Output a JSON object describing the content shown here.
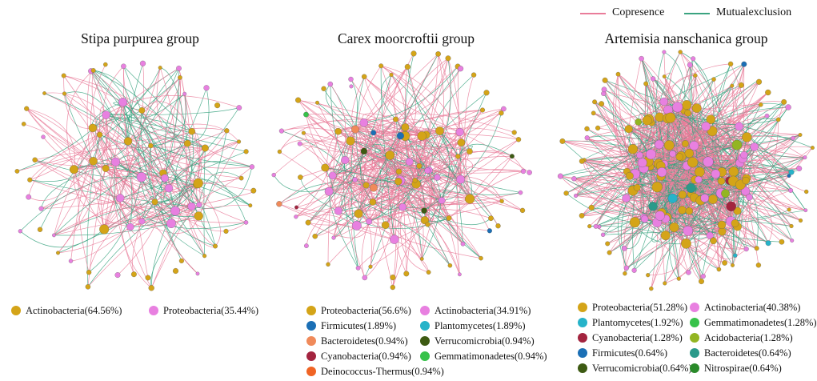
{
  "edge_legend": {
    "items": [
      {
        "label": "Copresence",
        "color": "#e97c9a"
      },
      {
        "label": "Mutualexclusion",
        "color": "#3aa380"
      }
    ]
  },
  "groups": [
    {
      "title": "Stipa purpurea group",
      "legend": [
        {
          "label": "Actinobacteria(64.56%)",
          "color": "#d4a418"
        },
        {
          "label": "Proteobacteria(35.44%)",
          "color": "#e880e0"
        }
      ]
    },
    {
      "title": "Carex moorcroftii group",
      "legend": [
        {
          "label": "Proteobacteria(56.6%)",
          "color": "#d4a418"
        },
        {
          "label": "Actinobacteria(34.91%)",
          "color": "#e880e0"
        },
        {
          "label": "Firmicutes(1.89%)",
          "color": "#1b6fb5"
        },
        {
          "label": "Plantomycetes(1.89%)",
          "color": "#26b3c9"
        },
        {
          "label": "Bacteroidetes(0.94%)",
          "color": "#f08a5a"
        },
        {
          "label": "Verrucomicrobia(0.94%)",
          "color": "#3d5a12"
        },
        {
          "label": "Cyanobacteria(0.94%)",
          "color": "#a3243f"
        },
        {
          "label": "Gemmatimonadetes(0.94%)",
          "color": "#37c24a"
        },
        {
          "label": "Deinococcus-Thermus(0.94%)",
          "color": "#f06424"
        }
      ]
    },
    {
      "title": "Artemisia nanschanica group",
      "legend": [
        {
          "label": "Proteobacteria(51.28%)",
          "color": "#d4a418"
        },
        {
          "label": "Actinobacteria(40.38%)",
          "color": "#e880e0"
        },
        {
          "label": "Plantomycetes(1.92%)",
          "color": "#26b3c9"
        },
        {
          "label": "Gemmatimonadetes(1.28%)",
          "color": "#37c24a"
        },
        {
          "label": "Cyanobacteria(1.28%)",
          "color": "#a3243f"
        },
        {
          "label": "Acidobacteria(1.28%)",
          "color": "#93b522"
        },
        {
          "label": "Firmicutes(0.64%)",
          "color": "#1b6fb5"
        },
        {
          "label": "Bacteroidetes(0.64%)",
          "color": "#2a9a8a"
        },
        {
          "label": "Verrucomicrobia(0.64%)",
          "color": "#3d5a12"
        },
        {
          "label": "Nitrospirae(0.64%)",
          "color": "#2a8a2a"
        }
      ]
    }
  ]
}
